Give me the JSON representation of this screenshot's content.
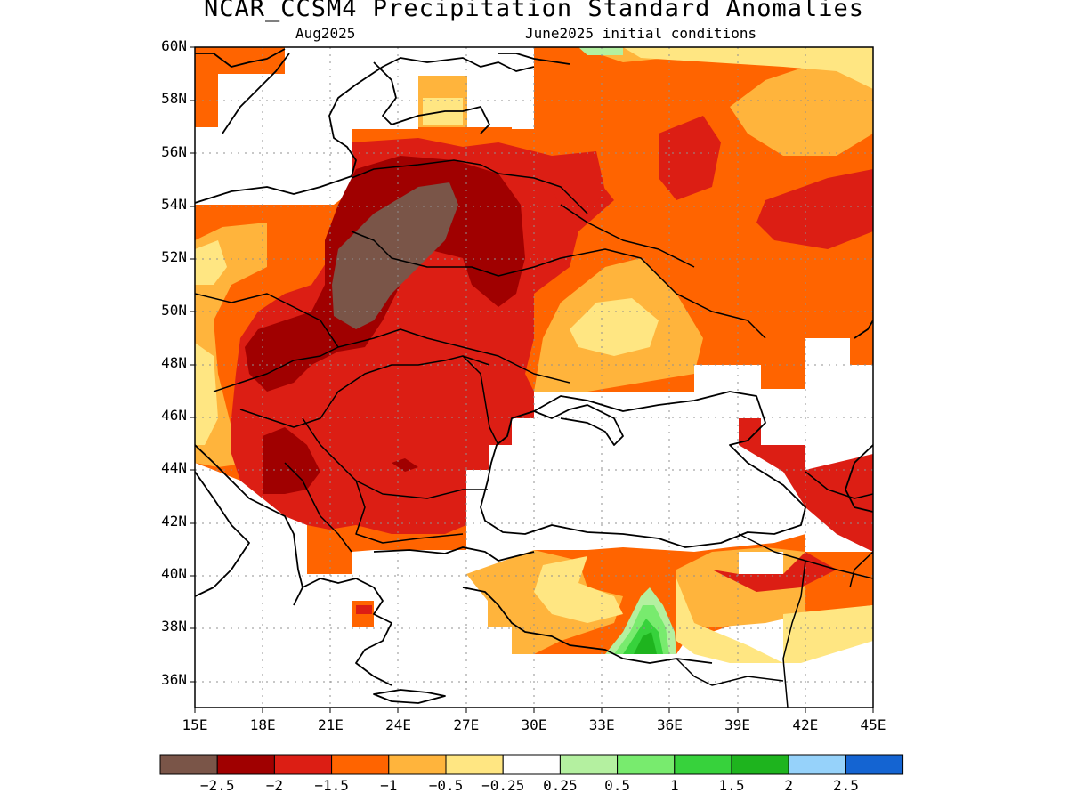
{
  "title": "NCAR_CCSM4 Precipitation Standard Anomalies",
  "subtitle_left": "Aug2025",
  "subtitle_right": "June2025 initial conditions",
  "lat_labels": [
    "60N",
    "58N",
    "56N",
    "54N",
    "52N",
    "50N",
    "48N",
    "46N",
    "44N",
    "42N",
    "40N",
    "38N",
    "36N"
  ],
  "lon_labels": [
    "15E",
    "18E",
    "21E",
    "24E",
    "27E",
    "30E",
    "33E",
    "36E",
    "39E",
    "42E",
    "45E"
  ],
  "colorbar": {
    "colors": [
      "#7a5548",
      "#a00000",
      "#dc1e14",
      "#ff6400",
      "#ffb43c",
      "#ffe682",
      "#ffffff",
      "#b4f0a0",
      "#78eb6e",
      "#37d23c",
      "#1eb41e",
      "#96d2fa",
      "#1464d2"
    ],
    "labels": [
      "−2.5",
      "−2",
      "−1.5",
      "−1",
      "−0.5",
      "−0.25",
      "0.25",
      "0.5",
      "1",
      "1.5",
      "2",
      "2.5"
    ]
  },
  "colors": {
    "very_dry": "#7a5548",
    "dark_red": "#a00000",
    "red": "#dc1e14",
    "orange": "#ff6400",
    "light_orange": "#ffb43c",
    "yellow": "#ffe682",
    "light_green": "#b4f0a0",
    "green": "#78eb6e",
    "mid_green": "#37d23c",
    "dark_green": "#1eb41e"
  }
}
